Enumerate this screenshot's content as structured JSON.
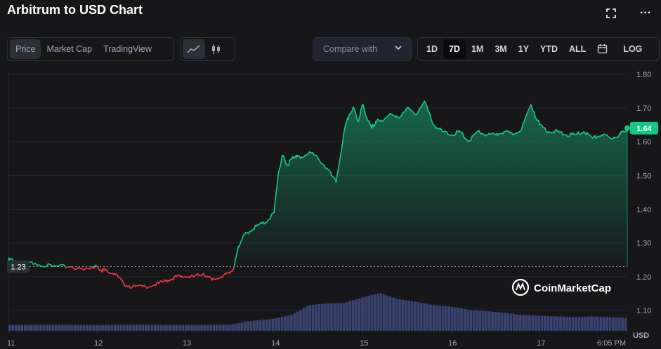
{
  "header": {
    "title": "Arbitrum to USD Chart"
  },
  "view_tabs": [
    {
      "label": "Price",
      "active": true
    },
    {
      "label": "Market Cap",
      "active": false
    },
    {
      "label": "TradingView",
      "active": false
    }
  ],
  "chart_type_icons": [
    {
      "name": "line-chart-icon",
      "active": true
    },
    {
      "name": "candlestick-icon",
      "active": false
    }
  ],
  "compare": {
    "label": "Compare with"
  },
  "timeframes": [
    {
      "label": "1D",
      "active": false
    },
    {
      "label": "7D",
      "active": true
    },
    {
      "label": "1M",
      "active": false
    },
    {
      "label": "3M",
      "active": false
    },
    {
      "label": "1Y",
      "active": false
    },
    {
      "label": "YTD",
      "active": false
    },
    {
      "label": "ALL",
      "active": false
    }
  ],
  "log_label": "LOG",
  "watermark": "CoinMarketCap",
  "colors": {
    "up": "#16c784",
    "down": "#ea3943",
    "volume": "#3a4270",
    "background": "#17171a"
  },
  "chart_data": {
    "type": "area",
    "title": "Arbitrum to USD Chart",
    "y_axis_ticks": [
      "1.80",
      "1.70",
      "1.60",
      "1.50",
      "1.40",
      "1.30",
      "1.20",
      "1.10"
    ],
    "ylim": [
      1.04,
      1.81
    ],
    "x_axis_ticks": [
      "11",
      "12",
      "13",
      "14",
      "15",
      "16",
      "17",
      "6:05 PM"
    ],
    "xlim": [
      0,
      6.99
    ],
    "reference_price": 1.23,
    "reference_label": "1.23",
    "current_price": 1.64,
    "current_label": "1.64",
    "volume_label": "USD",
    "x": [
      0,
      0.05,
      0.15,
      0.3,
      0.5,
      0.7,
      0.85,
      0.95,
      1.0,
      1.05,
      1.1,
      1.2,
      1.3,
      1.4,
      1.55,
      1.7,
      1.8,
      1.9,
      2.0,
      2.1,
      2.2,
      2.3,
      2.4,
      2.5,
      2.55,
      2.6,
      2.65,
      2.7,
      2.8,
      2.9,
      3.0,
      3.05,
      3.1,
      3.15,
      3.2,
      3.25,
      3.3,
      3.4,
      3.5,
      3.6,
      3.7,
      3.8,
      3.85,
      3.9,
      3.95,
      4.0,
      4.05,
      4.1,
      4.15,
      4.2,
      4.3,
      4.4,
      4.5,
      4.6,
      4.7,
      4.8,
      4.9,
      5.0,
      5.1,
      5.2,
      5.3,
      5.4,
      5.5,
      5.6,
      5.7,
      5.8,
      5.9,
      6.0,
      6.1,
      6.2,
      6.3,
      6.4,
      6.5,
      6.6,
      6.7,
      6.8,
      6.9,
      6.95,
      6.99
    ],
    "y": [
      1.25,
      1.25,
      1.24,
      1.24,
      1.23,
      1.23,
      1.22,
      1.23,
      1.23,
      1.22,
      1.22,
      1.21,
      1.18,
      1.17,
      1.17,
      1.18,
      1.19,
      1.2,
      1.2,
      1.2,
      1.21,
      1.19,
      1.2,
      1.21,
      1.23,
      1.29,
      1.32,
      1.33,
      1.35,
      1.36,
      1.39,
      1.51,
      1.56,
      1.53,
      1.55,
      1.56,
      1.55,
      1.57,
      1.55,
      1.52,
      1.48,
      1.64,
      1.68,
      1.7,
      1.66,
      1.71,
      1.67,
      1.64,
      1.66,
      1.66,
      1.68,
      1.67,
      1.7,
      1.68,
      1.72,
      1.65,
      1.63,
      1.62,
      1.63,
      1.6,
      1.63,
      1.62,
      1.62,
      1.63,
      1.62,
      1.64,
      1.71,
      1.65,
      1.63,
      1.63,
      1.62,
      1.62,
      1.63,
      1.61,
      1.62,
      1.61,
      1.62,
      1.63,
      1.64
    ],
    "volume_x": [
      0,
      0.5,
      1.0,
      1.5,
      2.0,
      2.5,
      2.7,
      3.0,
      3.2,
      3.4,
      3.6,
      3.8,
      4.0,
      4.2,
      4.4,
      4.6,
      4.8,
      5.0,
      5.2,
      5.4,
      5.6,
      5.8,
      6.0,
      6.2,
      6.4,
      6.6,
      6.8,
      6.99
    ],
    "volume_rel": [
      0.15,
      0.16,
      0.15,
      0.16,
      0.15,
      0.16,
      0.25,
      0.32,
      0.42,
      0.68,
      0.72,
      0.74,
      0.88,
      1.0,
      0.84,
      0.77,
      0.68,
      0.64,
      0.56,
      0.52,
      0.48,
      0.42,
      0.4,
      0.38,
      0.36,
      0.38,
      0.36,
      0.34
    ]
  }
}
